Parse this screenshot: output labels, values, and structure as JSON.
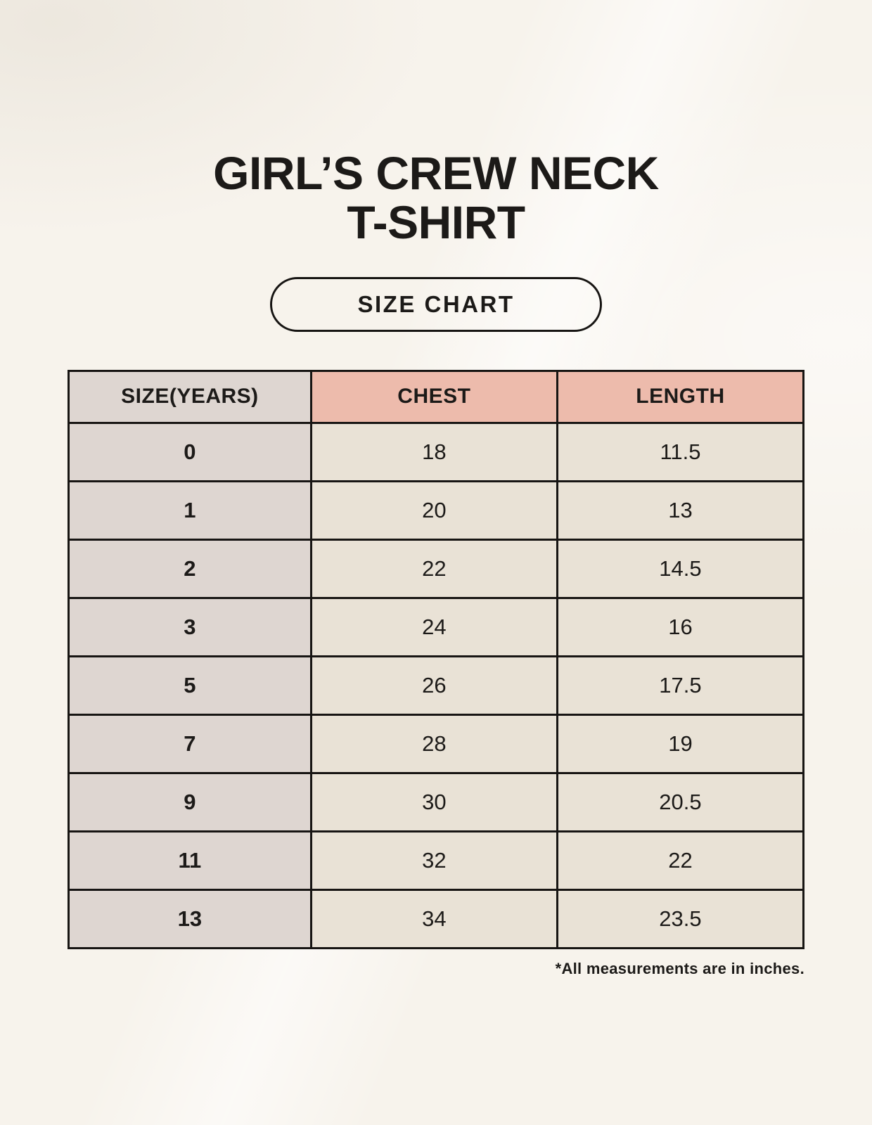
{
  "page": {
    "title_line1": "GIRL’S CREW NECK",
    "title_line2": "T-SHIRT",
    "badge_label": "SIZE CHART",
    "footnote": "*All measurements are in inches."
  },
  "colors": {
    "page_bg": "#f7f3ec",
    "size_col_bg": "#ded6d1",
    "measure_header_bg": "#edbbac",
    "cell_bg": "#e9e2d6",
    "border": "#171513",
    "text": "#1c1a18"
  },
  "chart_data": {
    "type": "table",
    "title": "GIRL’S CREW NECK T-SHIRT",
    "subtitle": "SIZE CHART",
    "columns": [
      "SIZE(YEARS)",
      "CHEST",
      "LENGTH"
    ],
    "rows": [
      [
        "0",
        "18",
        "11.5"
      ],
      [
        "1",
        "20",
        "13"
      ],
      [
        "2",
        "22",
        "14.5"
      ],
      [
        "3",
        "24",
        "16"
      ],
      [
        "5",
        "26",
        "17.5"
      ],
      [
        "7",
        "28",
        "19"
      ],
      [
        "9",
        "30",
        "20.5"
      ],
      [
        "11",
        "32",
        "22"
      ],
      [
        "13",
        "34",
        "23.5"
      ]
    ],
    "units_note": "*All measurements are in inches."
  }
}
